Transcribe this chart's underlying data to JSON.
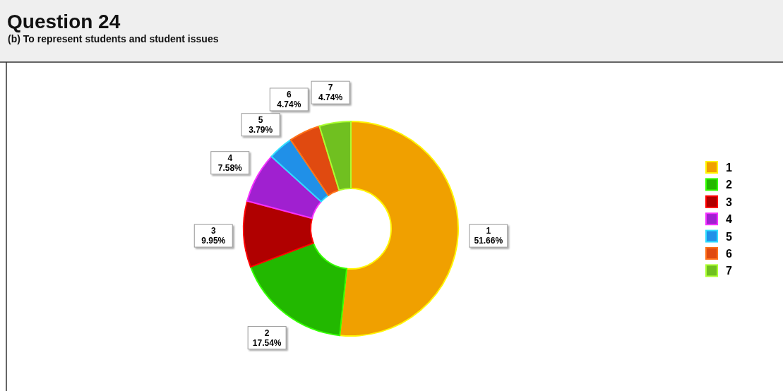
{
  "chart_data": {
    "type": "donut",
    "title": "Question 24",
    "subtitle": "(b) To represent students and student issues",
    "categories": [
      "1",
      "2",
      "3",
      "4",
      "5",
      "6",
      "7"
    ],
    "values": [
      51.66,
      17.54,
      9.95,
      7.58,
      3.79,
      4.74,
      4.74
    ],
    "value_labels": [
      "51.66%",
      "17.54%",
      "9.95%",
      "7.58%",
      "3.79%",
      "4.74%",
      "4.74%"
    ],
    "colors": [
      "#f0a000",
      "#22b800",
      "#b00000",
      "#a020d0",
      "#2090e8",
      "#e04a10",
      "#70c020"
    ],
    "legend": "right"
  }
}
